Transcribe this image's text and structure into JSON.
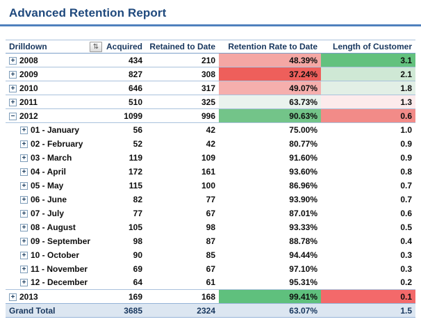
{
  "title": "Advanced Retention Report",
  "colors": {
    "title_text": "#1F497D",
    "accent_rule": "#4F81BD",
    "header_text": "#17365D",
    "row_border": "#A9C1DC",
    "grand_total_bg": "#DCE6F1",
    "scale_red": "#EE5F5B",
    "scale_green": "#5FC07D"
  },
  "table": {
    "headers": [
      "Drilldown",
      "Acquired",
      "Retained to Date",
      "Retention Rate to Date",
      "Length of Customer"
    ],
    "filter_icon": "sort-filter-dropdown-icon",
    "filter_glyph": "⇅",
    "rows": [
      {
        "label": "2008",
        "level": "year",
        "toggle": "+",
        "acquired": "434",
        "retained": "210",
        "rate": "48.39%",
        "length": "3.1",
        "rate_bg": "#F4A7A4",
        "length_bg": "#63C17E"
      },
      {
        "label": "2009",
        "level": "year",
        "toggle": "+",
        "acquired": "827",
        "retained": "308",
        "rate": "37.24%",
        "length": "2.1",
        "rate_bg": "#EE5F5B",
        "length_bg": "#CFE8D5"
      },
      {
        "label": "2010",
        "level": "year",
        "toggle": "+",
        "acquired": "646",
        "retained": "317",
        "rate": "49.07%",
        "length": "1.8",
        "rate_bg": "#F5AFAD",
        "length_bg": "#E2EFE6"
      },
      {
        "label": "2011",
        "level": "year",
        "toggle": "+",
        "acquired": "510",
        "retained": "325",
        "rate": "63.73%",
        "length": "1.3",
        "rate_bg": "#EAF3EE",
        "length_bg": "#FCEBEC"
      },
      {
        "label": "2012",
        "level": "year",
        "toggle": "−",
        "acquired": "1099",
        "retained": "996",
        "rate": "90.63%",
        "length": "0.6",
        "rate_bg": "#73C489",
        "length_bg": "#F28B88"
      },
      {
        "label": "01 - January",
        "level": "month",
        "toggle": "+",
        "acquired": "56",
        "retained": "42",
        "rate": "75.00%",
        "length": "1.0",
        "rate_bg": "",
        "length_bg": ""
      },
      {
        "label": "02 - February",
        "level": "month",
        "toggle": "+",
        "acquired": "52",
        "retained": "42",
        "rate": "80.77%",
        "length": "0.9",
        "rate_bg": "",
        "length_bg": ""
      },
      {
        "label": "03 - March",
        "level": "month",
        "toggle": "+",
        "acquired": "119",
        "retained": "109",
        "rate": "91.60%",
        "length": "0.9",
        "rate_bg": "",
        "length_bg": ""
      },
      {
        "label": "04 - April",
        "level": "month",
        "toggle": "+",
        "acquired": "172",
        "retained": "161",
        "rate": "93.60%",
        "length": "0.8",
        "rate_bg": "",
        "length_bg": ""
      },
      {
        "label": "05 - May",
        "level": "month",
        "toggle": "+",
        "acquired": "115",
        "retained": "100",
        "rate": "86.96%",
        "length": "0.7",
        "rate_bg": "",
        "length_bg": ""
      },
      {
        "label": "06 - June",
        "level": "month",
        "toggle": "+",
        "acquired": "82",
        "retained": "77",
        "rate": "93.90%",
        "length": "0.7",
        "rate_bg": "",
        "length_bg": ""
      },
      {
        "label": "07 - July",
        "level": "month",
        "toggle": "+",
        "acquired": "77",
        "retained": "67",
        "rate": "87.01%",
        "length": "0.6",
        "rate_bg": "",
        "length_bg": ""
      },
      {
        "label": "08 - August",
        "level": "month",
        "toggle": "+",
        "acquired": "105",
        "retained": "98",
        "rate": "93.33%",
        "length": "0.5",
        "rate_bg": "",
        "length_bg": ""
      },
      {
        "label": "09 - September",
        "level": "month",
        "toggle": "+",
        "acquired": "98",
        "retained": "87",
        "rate": "88.78%",
        "length": "0.4",
        "rate_bg": "",
        "length_bg": ""
      },
      {
        "label": "10 - October",
        "level": "month",
        "toggle": "+",
        "acquired": "90",
        "retained": "85",
        "rate": "94.44%",
        "length": "0.3",
        "rate_bg": "",
        "length_bg": ""
      },
      {
        "label": "11 - November",
        "level": "month",
        "toggle": "+",
        "acquired": "69",
        "retained": "67",
        "rate": "97.10%",
        "length": "0.3",
        "rate_bg": "",
        "length_bg": ""
      },
      {
        "label": "12 - December",
        "level": "month",
        "toggle": "+",
        "acquired": "64",
        "retained": "61",
        "rate": "95.31%",
        "length": "0.2",
        "rate_bg": "",
        "length_bg": ""
      },
      {
        "label": "2013",
        "level": "year",
        "toggle": "+",
        "acquired": "169",
        "retained": "168",
        "rate": "99.41%",
        "length": "0.1",
        "rate_bg": "#5FC07D",
        "length_bg": "#F3696A"
      },
      {
        "label": "Grand Total",
        "level": "total",
        "toggle": "",
        "acquired": "3685",
        "retained": "2324",
        "rate": "63.07%",
        "length": "1.5",
        "rate_bg": "",
        "length_bg": ""
      }
    ]
  }
}
